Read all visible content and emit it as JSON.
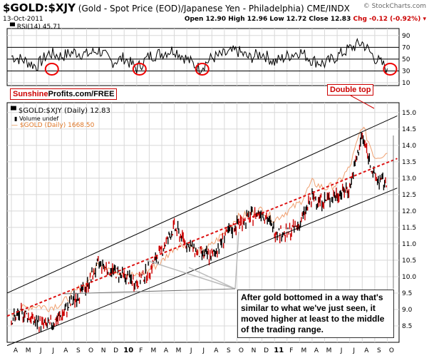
{
  "header": {
    "ticker": "$GOLD:$XJY",
    "description": "(Gold - Spot Price (EOD)/Japanese Yen - Philadelphia)",
    "exchange": "CME/INDX",
    "brand": "© StockCharts.com",
    "date": "13-Oct-2011",
    "open": "Open 12.90",
    "high": "High 12.96",
    "low": "Low 12.72",
    "close": "Close 12.83",
    "chg": "Chg -0.12 (-0.92%)"
  },
  "logo": {
    "part1": "Sunshine",
    "part2": "Profits.com/FREE"
  },
  "legend": {
    "main": "$GOLD:$XJY (Daily) 12.83",
    "volume": "Volume undef",
    "overlay": "$GOLD (Daily) 1668.50"
  },
  "annotations": {
    "double_top": "Double top",
    "note": "After gold bottomed in a way that's similar to what we've just seen, it moved higher at least to the middle of the trading range."
  },
  "colors": {
    "price": "#000000",
    "down_bar": "#cc0000",
    "overlay": "#f0a070",
    "trend": "#dd1111",
    "channel": "#000000",
    "grid": "#d8d8d8",
    "circle": "#ee0000"
  },
  "chart_data": [
    {
      "type": "line",
      "title": "RSI(14) 45.71",
      "ylim": [
        10,
        97
      ],
      "yticks": [
        90,
        70,
        50,
        30,
        10
      ],
      "reference_lines": [
        70,
        50,
        30
      ],
      "x": [
        "2009-04",
        "2009-05",
        "2009-06",
        "2009-07",
        "2009-08",
        "2009-09",
        "2009-10",
        "2009-11",
        "2009-12",
        "2010-01",
        "2010-02",
        "2010-03",
        "2010-04",
        "2010-05",
        "2010-06",
        "2010-07",
        "2010-08",
        "2010-09",
        "2010-10",
        "2010-11",
        "2010-12",
        "2011-01",
        "2011-02",
        "2011-03",
        "2011-04",
        "2011-05",
        "2011-06",
        "2011-07",
        "2011-08",
        "2011-09",
        "2011-10"
      ],
      "values": [
        55,
        48,
        38,
        60,
        55,
        62,
        58,
        65,
        45,
        52,
        34,
        55,
        60,
        66,
        50,
        34,
        52,
        58,
        64,
        52,
        60,
        45,
        55,
        63,
        48,
        42,
        55,
        68,
        78,
        52,
        34
      ],
      "circled_lows": [
        "2009-07",
        "2010-02",
        "2010-07",
        "2011-10"
      ]
    },
    {
      "type": "line",
      "title": "$GOLD:$XJY (Daily) 12.83",
      "ylim": [
        8.0,
        15.3
      ],
      "yticks": [
        15.0,
        14.5,
        14.0,
        13.5,
        13.0,
        12.5,
        12.0,
        11.5,
        11.0,
        10.5,
        10.0,
        9.5,
        9.0,
        8.5
      ],
      "xticks": [
        "A",
        "M",
        "J",
        "J",
        "A",
        "S",
        "O",
        "N",
        "D",
        "10",
        "F",
        "M",
        "A",
        "M",
        "J",
        "J",
        "A",
        "S",
        "O",
        "N",
        "D",
        "11",
        "F",
        "M",
        "A",
        "M",
        "J",
        "J",
        "A",
        "S",
        "O"
      ],
      "x": [
        "2009-04",
        "2009-05",
        "2009-06",
        "2009-07",
        "2009-08",
        "2009-09",
        "2009-10",
        "2009-11",
        "2009-12",
        "2010-01",
        "2010-02",
        "2010-03",
        "2010-04",
        "2010-05",
        "2010-06",
        "2010-07",
        "2010-08",
        "2010-09",
        "2010-10",
        "2010-11",
        "2010-12",
        "2011-01",
        "2011-02",
        "2011-03",
        "2011-04",
        "2011-05",
        "2011-06",
        "2011-07",
        "2011-08",
        "2011-09",
        "2011-10"
      ],
      "series": [
        {
          "name": "$GOLD:$XJY (Daily)",
          "values": [
            8.7,
            8.9,
            8.6,
            8.5,
            8.8,
            9.3,
            9.7,
            10.4,
            10.2,
            10.0,
            9.8,
            10.2,
            10.8,
            11.5,
            11.0,
            10.7,
            10.6,
            11.2,
            11.6,
            11.8,
            12.0,
            11.4,
            11.3,
            11.6,
            12.4,
            12.3,
            12.5,
            12.7,
            14.3,
            13.0,
            12.8
          ]
        },
        {
          "name": "$GOLD (Daily)",
          "values": [
            890,
            930,
            940,
            930,
            950,
            1000,
            1050,
            1150,
            1110,
            1100,
            1080,
            1110,
            1150,
            1220,
            1240,
            1190,
            1230,
            1290,
            1360,
            1380,
            1400,
            1350,
            1390,
            1430,
            1530,
            1500,
            1520,
            1600,
            1800,
            1650,
            1668.5
          ]
        }
      ],
      "trendlines": [
        {
          "name": "upper channel",
          "from": [
            "2009-04",
            9.5
          ],
          "to": [
            "2011-10",
            14.9
          ]
        },
        {
          "name": "lower channel",
          "from": [
            "2009-04",
            7.9
          ],
          "to": [
            "2011-10",
            12.7
          ]
        },
        {
          "name": "middle trend",
          "from": [
            "2009-04",
            8.8
          ],
          "to": [
            "2011-10",
            13.6
          ]
        }
      ]
    }
  ]
}
